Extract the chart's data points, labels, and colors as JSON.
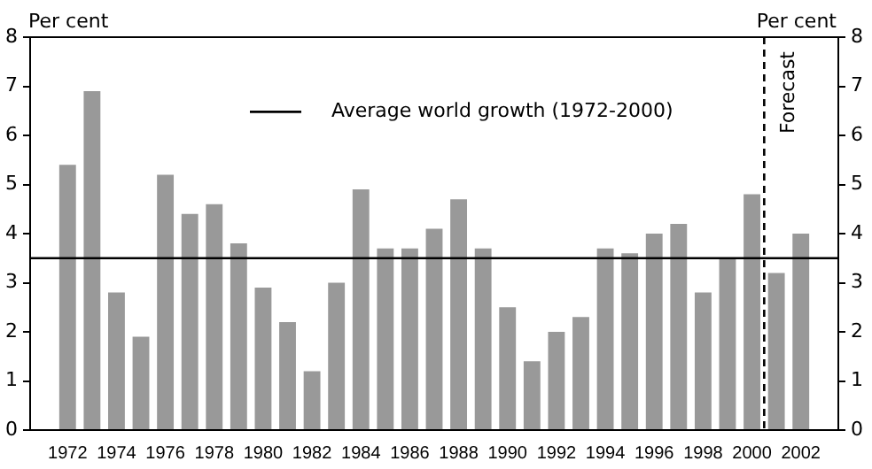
{
  "chart_data": {
    "type": "bar",
    "ylabel": "Per cent",
    "y2label": "Per cent",
    "x": [
      1972,
      1973,
      1974,
      1975,
      1976,
      1977,
      1978,
      1979,
      1980,
      1981,
      1982,
      1983,
      1984,
      1985,
      1986,
      1987,
      1988,
      1989,
      1990,
      1991,
      1992,
      1993,
      1994,
      1995,
      1996,
      1997,
      1998,
      1999,
      2000,
      2001,
      2002
    ],
    "values": [
      5.4,
      6.9,
      2.8,
      1.9,
      5.2,
      4.4,
      4.6,
      3.8,
      2.9,
      2.2,
      1.2,
      3.0,
      4.9,
      3.7,
      3.7,
      4.1,
      4.7,
      3.7,
      2.5,
      1.4,
      2.0,
      2.3,
      3.7,
      3.6,
      4.0,
      4.2,
      2.8,
      3.5,
      4.8,
      3.2,
      4.0
    ],
    "color": "#999999",
    "xlim": [
      1971.5,
      2002.5
    ],
    "xticks": [
      1972,
      1974,
      1976,
      1978,
      1980,
      1982,
      1984,
      1986,
      1988,
      1990,
      1992,
      1994,
      1996,
      1998,
      2000,
      2002
    ],
    "ylim": [
      0,
      8
    ],
    "yticks": [
      0,
      1,
      2,
      3,
      4,
      5,
      6,
      7,
      8
    ],
    "y2lim": [
      0,
      8
    ],
    "y2ticks": [
      0,
      1,
      2,
      3,
      4,
      5,
      6,
      7,
      8
    ],
    "ref_lines": [
      {
        "axis": "y",
        "value": 3.5,
        "label": "Average world growth (1972-2000)",
        "color": "#000000",
        "line_style": "solid"
      },
      {
        "axis": "x",
        "value": 2000.5,
        "label": "Forecast",
        "color": "#000000",
        "line_style": "dashed"
      }
    ],
    "grid": false
  }
}
